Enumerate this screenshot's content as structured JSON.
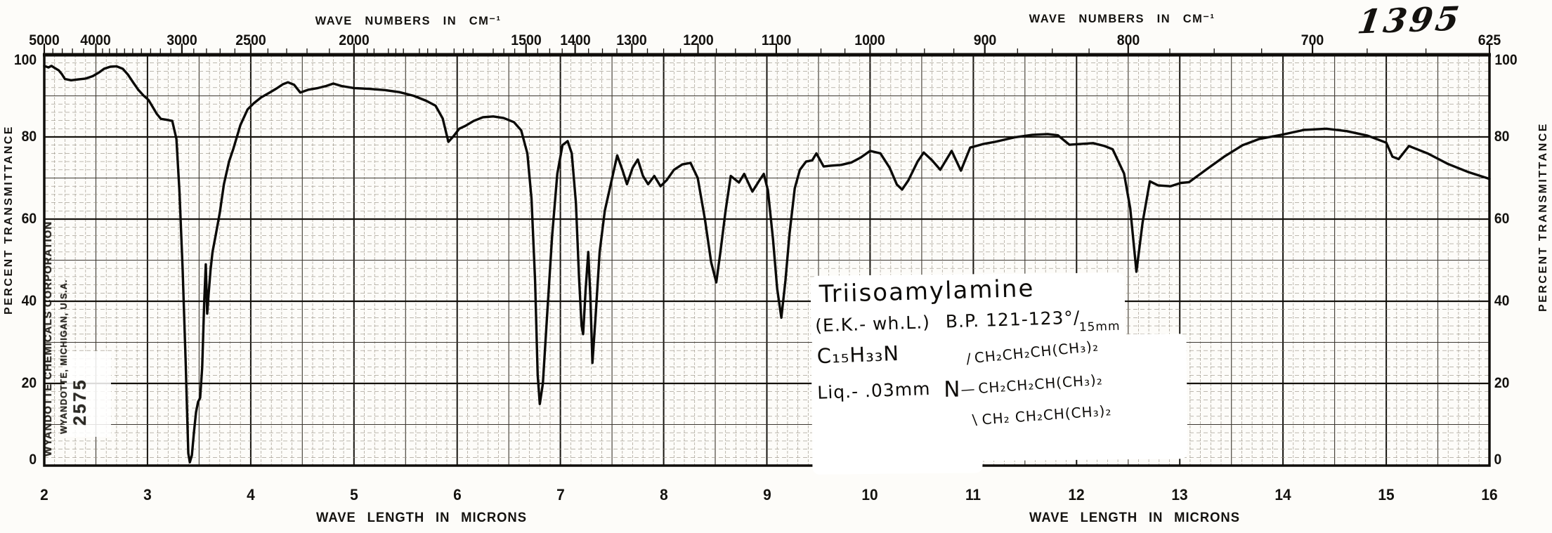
{
  "page": {
    "handwritten_number": "1395"
  },
  "axes": {
    "top": {
      "title": "WAVE NUMBERS IN CM⁻¹",
      "labels": [
        5000,
        4000,
        3000,
        2500,
        2000,
        1500,
        1400,
        1300,
        1200,
        1100,
        1000,
        900,
        800,
        700,
        625
      ]
    },
    "bottom": {
      "title": "WAVE LENGTH IN MICRONS",
      "labels": [
        2,
        3,
        4,
        5,
        6,
        7,
        8,
        9,
        10,
        11,
        12,
        13,
        14,
        15,
        16
      ]
    },
    "left": {
      "title": "PERCENT TRANSMITTANCE",
      "labels": [
        100,
        80,
        60,
        40,
        20,
        0
      ]
    },
    "right": {
      "title": "PERCENT TRANSMITTANCE",
      "labels": [
        100,
        80,
        60,
        40,
        20,
        0
      ]
    }
  },
  "stamp": {
    "company": "WYANDOTTE CHEMICALS CORPORATION",
    "location": "WYANDOTTE, MICHIGAN, U.S.A.",
    "sample_number": "2575"
  },
  "annotation": {
    "compound": "Triisoamylamine",
    "source": "(E.K.- wh.L.)",
    "bp": "B.P. 121-123°/",
    "bp_pressure": "15mm",
    "formula": "C₁₅H₃₃N",
    "state": "Liq.- .03mm",
    "structure": {
      "atom": "N",
      "bonds": [
        "∕",
        "—",
        "∖"
      ],
      "branches": [
        "CH₂CH₂CH(CH₃)₂",
        "CH₂CH₂CH(CH₃)₂",
        "CH₂ CH₂CH(CH₃)₂"
      ]
    }
  },
  "chart_data": {
    "type": "line",
    "title": "Infrared absorption spectrum of Triisoamylamine",
    "xlabel": "WAVE LENGTH IN MICRONS",
    "x2label": "WAVE NUMBERS IN CM⁻¹",
    "ylabel": "PERCENT TRANSMITTANCE",
    "xlim": [
      2,
      16
    ],
    "ylim": [
      0,
      100
    ],
    "grid": "fine ruled, dashed horizontal minors",
    "main_absorption_bands_um_pctT": [
      [
        3.41,
        1
      ],
      [
        6.8,
        15
      ],
      [
        7.22,
        32
      ],
      [
        7.31,
        25
      ],
      [
        8.51,
        45
      ],
      [
        9.14,
        36
      ],
      [
        12.58,
        47
      ]
    ],
    "series": [
      {
        "name": "transmittance",
        "points": [
          [
            2.0,
            97.3
          ],
          [
            2.04,
            96.9
          ],
          [
            2.07,
            97.3
          ],
          [
            2.1,
            96.8
          ],
          [
            2.14,
            96.2
          ],
          [
            2.17,
            95.3
          ],
          [
            2.2,
            94.1
          ],
          [
            2.26,
            93.8
          ],
          [
            2.33,
            94.0
          ],
          [
            2.4,
            94.2
          ],
          [
            2.47,
            94.8
          ],
          [
            2.53,
            95.7
          ],
          [
            2.58,
            96.6
          ],
          [
            2.64,
            97.1
          ],
          [
            2.7,
            97.2
          ],
          [
            2.76,
            96.6
          ],
          [
            2.81,
            95.2
          ],
          [
            2.86,
            93.3
          ],
          [
            2.91,
            91.5
          ],
          [
            2.96,
            90.1
          ],
          [
            3.01,
            89.0
          ],
          [
            3.05,
            87.3
          ],
          [
            3.09,
            85.6
          ],
          [
            3.13,
            84.4
          ],
          [
            3.18,
            84.2
          ],
          [
            3.24,
            83.9
          ],
          [
            3.28,
            79.5
          ],
          [
            3.31,
            66.5
          ],
          [
            3.34,
            48.0
          ],
          [
            3.37,
            25.0
          ],
          [
            3.395,
            3.0
          ],
          [
            3.41,
            0.8
          ],
          [
            3.43,
            2.5
          ],
          [
            3.45,
            8.0
          ],
          [
            3.47,
            13.0
          ],
          [
            3.49,
            15.5
          ],
          [
            3.51,
            16.5
          ],
          [
            3.53,
            24.0
          ],
          [
            3.55,
            40.0
          ],
          [
            3.565,
            49.0
          ],
          [
            3.578,
            37.0
          ],
          [
            3.59,
            41.0
          ],
          [
            3.61,
            47.5
          ],
          [
            3.63,
            52.0
          ],
          [
            3.66,
            56.0
          ],
          [
            3.7,
            61.5
          ],
          [
            3.74,
            68.5
          ],
          [
            3.79,
            74.0
          ],
          [
            3.83,
            77.0
          ],
          [
            3.9,
            82.9
          ],
          [
            3.97,
            86.7
          ],
          [
            4.03,
            88.2
          ],
          [
            4.1,
            89.6
          ],
          [
            4.17,
            90.6
          ],
          [
            4.25,
            91.8
          ],
          [
            4.31,
            92.8
          ],
          [
            4.36,
            93.3
          ],
          [
            4.42,
            92.7
          ],
          [
            4.48,
            90.8
          ],
          [
            4.56,
            91.5
          ],
          [
            4.65,
            91.9
          ],
          [
            4.73,
            92.4
          ],
          [
            4.8,
            93.0
          ],
          [
            4.88,
            92.4
          ],
          [
            5.0,
            91.9
          ],
          [
            5.15,
            91.7
          ],
          [
            5.3,
            91.4
          ],
          [
            5.44,
            90.9
          ],
          [
            5.58,
            90.0
          ],
          [
            5.7,
            88.8
          ],
          [
            5.79,
            87.6
          ],
          [
            5.86,
            84.5
          ],
          [
            5.915,
            78.8
          ],
          [
            5.965,
            80.2
          ],
          [
            6.02,
            82.0
          ],
          [
            6.08,
            82.7
          ],
          [
            6.16,
            83.9
          ],
          [
            6.25,
            84.8
          ],
          [
            6.35,
            85.0
          ],
          [
            6.45,
            84.6
          ],
          [
            6.55,
            83.6
          ],
          [
            6.62,
            81.6
          ],
          [
            6.68,
            76.0
          ],
          [
            6.72,
            65.0
          ],
          [
            6.755,
            45.0
          ],
          [
            6.78,
            22.0
          ],
          [
            6.8,
            15.0
          ],
          [
            6.83,
            20.0
          ],
          [
            6.87,
            36.0
          ],
          [
            6.92,
            56.0
          ],
          [
            6.97,
            71.0
          ],
          [
            7.02,
            78.0
          ],
          [
            7.07,
            79.0
          ],
          [
            7.11,
            76.0
          ],
          [
            7.15,
            64.0
          ],
          [
            7.18,
            46.0
          ],
          [
            7.205,
            34.0
          ],
          [
            7.22,
            32.0
          ],
          [
            7.245,
            43.0
          ],
          [
            7.27,
            52.0
          ],
          [
            7.29,
            41.0
          ],
          [
            7.31,
            25.0
          ],
          [
            7.34,
            36.0
          ],
          [
            7.38,
            52.0
          ],
          [
            7.43,
            62.0
          ],
          [
            7.47,
            66.5
          ],
          [
            7.51,
            71.0
          ],
          [
            7.55,
            75.5
          ],
          [
            7.6,
            72.0
          ],
          [
            7.645,
            68.5
          ],
          [
            7.7,
            72.5
          ],
          [
            7.75,
            74.5
          ],
          [
            7.8,
            70.5
          ],
          [
            7.85,
            68.5
          ],
          [
            7.91,
            70.5
          ],
          [
            7.97,
            68.0
          ],
          [
            8.03,
            69.5
          ],
          [
            8.1,
            72.0
          ],
          [
            8.18,
            73.3
          ],
          [
            8.26,
            73.7
          ],
          [
            8.33,
            70.0
          ],
          [
            8.4,
            60.0
          ],
          [
            8.46,
            49.5
          ],
          [
            8.51,
            44.6
          ],
          [
            8.55,
            52.0
          ],
          [
            8.6,
            62.0
          ],
          [
            8.65,
            70.5
          ],
          [
            8.73,
            68.9
          ],
          [
            8.78,
            71.0
          ],
          [
            8.86,
            66.7
          ],
          [
            8.93,
            69.5
          ],
          [
            8.97,
            71.0
          ],
          [
            9.01,
            67.0
          ],
          [
            9.06,
            55.0
          ],
          [
            9.1,
            43.0
          ],
          [
            9.14,
            36.0
          ],
          [
            9.18,
            45.0
          ],
          [
            9.22,
            56.5
          ],
          [
            9.27,
            67.5
          ],
          [
            9.32,
            72.0
          ],
          [
            9.38,
            74.0
          ],
          [
            9.44,
            74.3
          ],
          [
            9.48,
            76.0
          ],
          [
            9.55,
            72.8
          ],
          [
            9.62,
            73.0
          ],
          [
            9.72,
            73.2
          ],
          [
            9.82,
            73.8
          ],
          [
            9.91,
            75.0
          ],
          [
            10.0,
            76.6
          ],
          [
            10.1,
            76.0
          ],
          [
            10.19,
            72.5
          ],
          [
            10.26,
            68.4
          ],
          [
            10.31,
            67.2
          ],
          [
            10.37,
            69.4
          ],
          [
            10.46,
            74.0
          ],
          [
            10.52,
            76.2
          ],
          [
            10.6,
            74.3
          ],
          [
            10.68,
            72.0
          ],
          [
            10.79,
            76.6
          ],
          [
            10.88,
            71.8
          ],
          [
            10.97,
            77.4
          ],
          [
            11.1,
            78.3
          ],
          [
            11.21,
            78.8
          ],
          [
            11.4,
            79.9
          ],
          [
            11.57,
            80.5
          ],
          [
            11.72,
            80.7
          ],
          [
            11.82,
            80.4
          ],
          [
            11.93,
            78.1
          ],
          [
            12.05,
            78.3
          ],
          [
            12.16,
            78.5
          ],
          [
            12.27,
            77.8
          ],
          [
            12.35,
            77.0
          ],
          [
            12.46,
            71.1
          ],
          [
            12.52,
            62.6
          ],
          [
            12.58,
            47.2
          ],
          [
            12.64,
            59.2
          ],
          [
            12.71,
            69.2
          ],
          [
            12.79,
            68.2
          ],
          [
            12.91,
            68.0
          ],
          [
            13.01,
            68.8
          ],
          [
            13.09,
            69.0
          ],
          [
            13.27,
            72.3
          ],
          [
            13.43,
            75.2
          ],
          [
            13.61,
            78.0
          ],
          [
            13.77,
            79.5
          ],
          [
            14.0,
            80.6
          ],
          [
            14.2,
            81.7
          ],
          [
            14.42,
            82.0
          ],
          [
            14.62,
            81.4
          ],
          [
            14.82,
            80.3
          ],
          [
            15.0,
            78.6
          ],
          [
            15.06,
            75.2
          ],
          [
            15.12,
            74.6
          ],
          [
            15.22,
            77.8
          ],
          [
            15.4,
            76.0
          ],
          [
            15.6,
            73.4
          ],
          [
            15.8,
            71.4
          ],
          [
            16.0,
            69.8
          ]
        ]
      }
    ]
  }
}
